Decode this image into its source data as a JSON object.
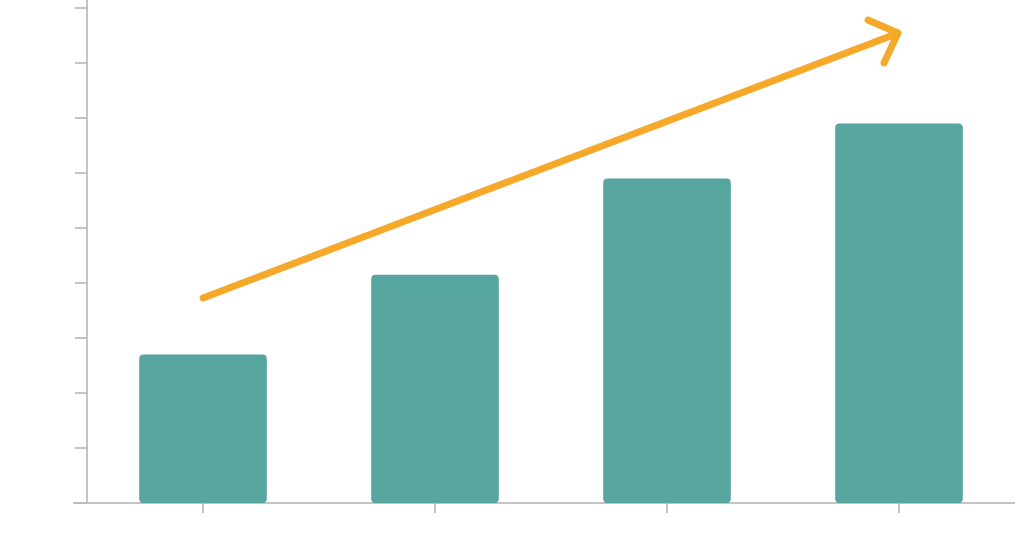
{
  "chart_data": {
    "type": "bar",
    "categories": [
      null,
      null,
      null,
      null
    ],
    "values": [
      2.7,
      4.15,
      5.9,
      6.9
    ],
    "color": "#56a69f",
    "ylim": [
      0,
      9
    ],
    "yticks": [
      0,
      1,
      2,
      3,
      4,
      5,
      6,
      7,
      8,
      9
    ]
  }
}
